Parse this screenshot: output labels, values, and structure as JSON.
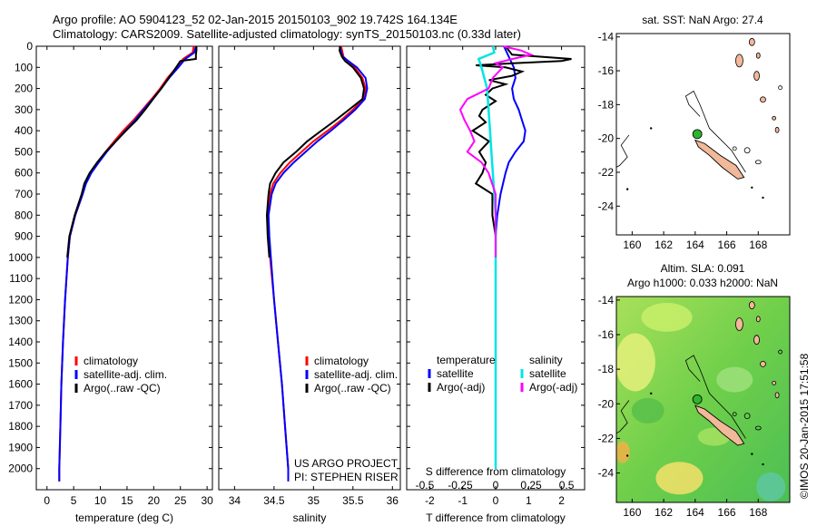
{
  "header": {
    "line1": "Argo profile: AO 5904123_52 02-Jan-2015 20150103_902 19.742S 164.134E",
    "line2": "Climatology: CARS2009. Satellite-adjusted climatology: synTS_20150103.nc (0.33d later)"
  },
  "credit": "©IMOS 20-Jan-2015 17:51:58",
  "colors": {
    "climatology": "#ff0000",
    "satellite": "#0000ff",
    "argo": "#000000",
    "sal_satellite": "#00e5e5",
    "sal_argo": "#ff00ff",
    "land": "#f2b89a",
    "float_marker": "#2db52d"
  },
  "chart_data": [
    {
      "type": "line",
      "xlabel": "temperature (deg C)",
      "ylabel": "",
      "xlim": [
        -2,
        31
      ],
      "ylim": [
        2100,
        0
      ],
      "x_ticks": [
        "0",
        "5",
        "10",
        "15",
        "20",
        "25",
        "30"
      ],
      "y_ticks": [
        "0",
        "100",
        "200",
        "300",
        "400",
        "500",
        "600",
        "700",
        "800",
        "900",
        "1000",
        "1100",
        "1200",
        "1300",
        "1400",
        "1500",
        "1600",
        "1700",
        "1800",
        "1900",
        "2000"
      ],
      "legend": [
        "climatology",
        "satellite-adj. clim.",
        "Argo(..raw -QC)"
      ],
      "legend_position": "lower-center",
      "series": [
        {
          "name": "climatology",
          "depth": [
            0,
            30,
            60,
            100,
            150,
            200,
            250,
            300,
            350,
            400,
            450,
            500,
            550,
            600,
            650,
            700,
            800,
            900,
            1000,
            1200,
            1400,
            1600,
            1800,
            2000,
            2060
          ],
          "values": [
            27.5,
            27.3,
            25.5,
            24.3,
            22.6,
            21.2,
            19.6,
            17.9,
            16.2,
            14.3,
            12.6,
            11.0,
            9.6,
            8.2,
            7.2,
            6.7,
            5.3,
            4.3,
            3.9,
            3.4,
            3.0,
            2.7,
            2.5,
            2.3,
            2.3
          ]
        },
        {
          "name": "satellite-adj. clim.",
          "depth": [
            0,
            30,
            60,
            100,
            150,
            200,
            250,
            300,
            350,
            400,
            450,
            500,
            550,
            600,
            650,
            700,
            800,
            900,
            1000,
            1200,
            1400,
            1600,
            1800,
            2000,
            2060
          ],
          "values": [
            27.9,
            27.6,
            25.9,
            24.6,
            22.9,
            21.4,
            19.8,
            18.1,
            16.5,
            14.7,
            12.9,
            11.2,
            9.7,
            8.3,
            7.3,
            6.7,
            5.3,
            4.3,
            3.9,
            3.4,
            3.0,
            2.7,
            2.5,
            2.3,
            2.3
          ]
        },
        {
          "name": "Argo(..raw -QC)",
          "depth": [
            0,
            10,
            20,
            40,
            60,
            70,
            100,
            150,
            200,
            250,
            300,
            350,
            400,
            450,
            500,
            550,
            600,
            650,
            700,
            800,
            900,
            1000
          ],
          "values": [
            28.0,
            28.0,
            28.0,
            27.9,
            27.9,
            25.0,
            24.2,
            22.8,
            21.4,
            19.9,
            18.4,
            16.8,
            14.8,
            12.9,
            11.0,
            9.4,
            8.0,
            7.0,
            6.5,
            5.2,
            4.2,
            3.8
          ]
        }
      ]
    },
    {
      "type": "line",
      "xlabel": "salinity",
      "ylabel": "",
      "xlim": [
        33.8,
        36.1
      ],
      "ylim": [
        2100,
        0
      ],
      "x_ticks": [
        "34",
        "34.5",
        "35",
        "35.5",
        "36"
      ],
      "legend": [
        "climatology",
        "satellite-adj. clim.",
        "Argo(..raw -QC)"
      ],
      "legend_position": "lower-center",
      "annotation": [
        "US ARGO PROJECT",
        "PI: STEPHEN RISER"
      ],
      "series": [
        {
          "name": "climatology",
          "depth": [
            0,
            50,
            100,
            150,
            200,
            250,
            300,
            350,
            400,
            450,
            500,
            550,
            600,
            650,
            700,
            800,
            900,
            1000,
            1200,
            1400,
            1600,
            1800,
            2000,
            2060
          ],
          "values": [
            35.35,
            35.38,
            35.52,
            35.62,
            35.66,
            35.63,
            35.5,
            35.35,
            35.18,
            35.0,
            34.85,
            34.7,
            34.58,
            34.49,
            34.45,
            34.42,
            34.43,
            34.45,
            34.5,
            34.55,
            34.6,
            34.64,
            34.68,
            34.68
          ]
        },
        {
          "name": "satellite-adj. clim.",
          "depth": [
            0,
            50,
            100,
            150,
            200,
            250,
            300,
            350,
            400,
            450,
            500,
            550,
            600,
            650,
            700,
            800,
            900,
            1000,
            1200,
            1400,
            1600,
            1800,
            2000,
            2060
          ],
          "values": [
            35.33,
            35.37,
            35.55,
            35.66,
            35.68,
            35.65,
            35.53,
            35.38,
            35.22,
            35.05,
            34.9,
            34.75,
            34.62,
            34.52,
            34.47,
            34.43,
            34.44,
            34.46,
            34.5,
            34.55,
            34.6,
            34.64,
            34.68,
            34.68
          ]
        },
        {
          "name": "Argo(..raw -QC)",
          "depth": [
            0,
            20,
            50,
            70,
            100,
            150,
            200,
            250,
            300,
            350,
            400,
            450,
            500,
            550,
            600,
            650,
            700,
            800,
            900,
            1000
          ],
          "values": [
            35.34,
            35.33,
            35.36,
            35.4,
            35.5,
            35.6,
            35.64,
            35.62,
            35.45,
            35.28,
            35.1,
            34.92,
            34.78,
            34.62,
            34.52,
            34.45,
            34.43,
            34.41,
            34.42,
            34.44
          ]
        }
      ]
    },
    {
      "type": "line",
      "xlabel": "T difference from climatology",
      "top_label": "S difference from climatology",
      "xlim": [
        -2.7,
        2.7
      ],
      "ylim": [
        2100,
        0
      ],
      "x_ticks": [
        "-2",
        "-1",
        "0",
        "1",
        "2"
      ],
      "s_ticks": [
        "-0.5",
        "-0.25",
        "0",
        "0.25",
        "0.5"
      ],
      "legend_headers": [
        "temperature",
        "salinity"
      ],
      "legend": [
        "satellite",
        "Argo(-adj)",
        "satellite",
        "Argo(-adj)"
      ],
      "legend_position": "lower-center",
      "series": [
        {
          "name": "satellite",
          "variable": "temperature",
          "depth": [
            0,
            50,
            100,
            150,
            200,
            250,
            300,
            350,
            400,
            450,
            500,
            550,
            600,
            700,
            800,
            900,
            1000,
            1200,
            1500,
            2000
          ],
          "values": [
            0.25,
            0.4,
            0.55,
            0.6,
            0.5,
            0.55,
            0.7,
            0.8,
            0.9,
            0.85,
            0.6,
            0.4,
            0.3,
            0.15,
            0.05,
            0.0,
            0.0,
            0.0,
            0.0,
            0.0
          ]
        },
        {
          "name": "Argo(-adj)",
          "variable": "temperature",
          "depth": [
            0,
            40,
            60,
            70,
            80,
            90,
            100,
            120,
            140,
            160,
            180,
            200,
            230,
            260,
            300,
            330,
            360,
            400,
            450,
            500,
            550,
            600,
            650,
            700,
            800,
            900,
            1000
          ],
          "values": [
            0.3,
            0.5,
            2.3,
            2.0,
            0.6,
            -0.6,
            0.3,
            0.8,
            0.5,
            -0.2,
            0.3,
            -0.1,
            -0.3,
            0.0,
            -0.4,
            -0.5,
            -0.3,
            -0.7,
            -0.2,
            -0.5,
            -0.3,
            -0.4,
            -0.6,
            -0.1,
            -0.1,
            0.0,
            0.0
          ]
        },
        {
          "name": "satellite",
          "variable": "salinity",
          "depth": [
            0,
            30,
            60,
            100,
            150,
            200,
            300,
            400,
            500,
            600,
            700,
            800,
            1000,
            1500,
            2000
          ],
          "values": [
            -0.02,
            -0.01,
            -0.12,
            -0.1,
            -0.08,
            -0.06,
            -0.05,
            -0.04,
            -0.03,
            -0.02,
            -0.01,
            0.0,
            0.0,
            0.0,
            0.0
          ]
        },
        {
          "name": "Argo(-adj)",
          "variable": "salinity",
          "depth": [
            0,
            20,
            40,
            60,
            80,
            100,
            150,
            200,
            250,
            300,
            350,
            400,
            450,
            500,
            550,
            600,
            700,
            800,
            900,
            1000
          ],
          "values": [
            0.05,
            0.18,
            0.25,
            0.12,
            0.0,
            0.05,
            -0.02,
            -0.05,
            -0.2,
            -0.25,
            -0.22,
            -0.18,
            -0.15,
            -0.2,
            -0.1,
            -0.05,
            0.0,
            0.0,
            0.0,
            0.0
          ]
        }
      ]
    },
    {
      "type": "map",
      "title": "sat. SST: NaN Argo: 27.4",
      "xlim": [
        159,
        170
      ],
      "ylim": [
        -25.7,
        -13.8
      ],
      "x_ticks": [
        "160",
        "162",
        "164",
        "166",
        "168"
      ],
      "y_ticks": [
        "-14",
        "-16",
        "-18",
        "-20",
        "-22",
        "-24"
      ],
      "float_position": {
        "lon": 164.134,
        "lat": -19.742
      }
    },
    {
      "type": "heatmap",
      "title": [
        "Altim. SLA: 0.091",
        "Argo h1000: 0.033 h2000: NaN"
      ],
      "xlim": [
        159,
        170
      ],
      "ylim": [
        -25.7,
        -13.8
      ],
      "x_ticks": [
        "160",
        "162",
        "164",
        "166",
        "168"
      ],
      "y_ticks": [
        "-14",
        "-16",
        "-18",
        "-20",
        "-22",
        "-24"
      ],
      "float_position": {
        "lon": 164.134,
        "lat": -19.742
      }
    }
  ]
}
